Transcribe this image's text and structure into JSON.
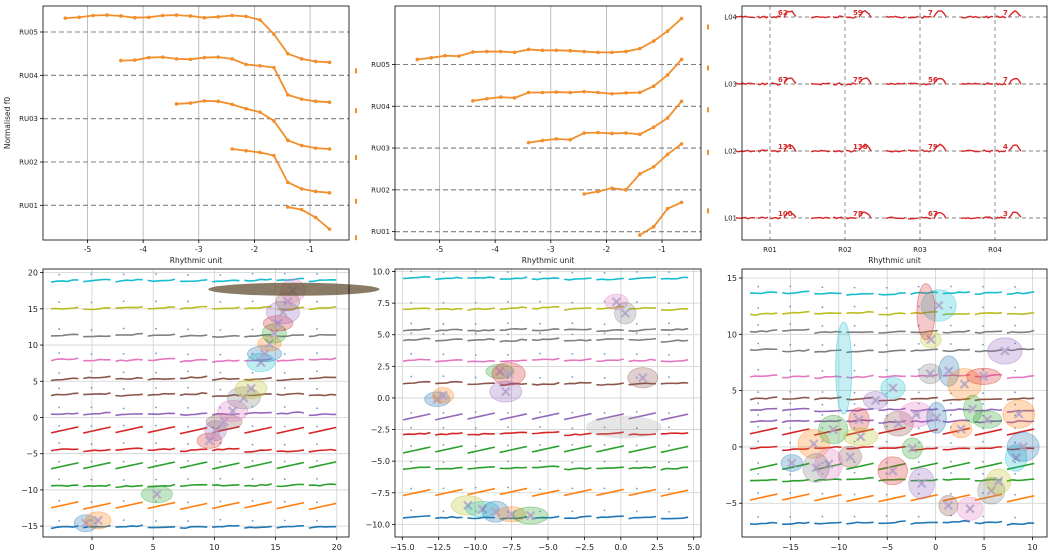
{
  "chart_data": [
    {
      "type": "line",
      "panel": "top-left",
      "xlabel": "Rhythmic unit",
      "ylabel": "Normalised f0",
      "xlim": [
        -5.8,
        -0.3
      ],
      "xticks": [
        "-5",
        "-4",
        "-3",
        "-2",
        "-1"
      ],
      "xtick_values": [
        -5,
        -4,
        -3,
        -2,
        -1
      ],
      "ylim": [
        0.2,
        5.6
      ],
      "yticks": [
        "RU01",
        "RU02",
        "RU03",
        "RU04",
        "RU05"
      ],
      "ytick_values": [
        1,
        2,
        3,
        4,
        5
      ],
      "grid": "vertical",
      "color": "#f28e2b",
      "series": [
        {
          "x": [
            -5.4,
            -5.15,
            -4.9,
            -4.65,
            -4.4,
            -4.15,
            -3.9,
            -3.65,
            -3.4,
            -3.15,
            -2.9,
            -2.65,
            -2.4,
            -2.15,
            -1.9,
            -1.65,
            -1.4,
            -1.15,
            -0.9,
            -0.65
          ],
          "y": [
            5.32,
            5.34,
            5.38,
            5.39,
            5.37,
            5.33,
            5.34,
            5.38,
            5.39,
            5.37,
            5.33,
            5.35,
            5.38,
            5.36,
            5.28,
            4.95,
            4.5,
            4.38,
            4.32,
            4.3
          ]
        },
        {
          "x": [
            -4.4,
            -4.15,
            -3.9,
            -3.65,
            -3.4,
            -3.15,
            -2.9,
            -2.65,
            -2.4,
            -2.15,
            -1.9,
            -1.65,
            -1.4,
            -1.15,
            -0.9,
            -0.65
          ],
          "y": [
            4.34,
            4.35,
            4.41,
            4.42,
            4.38,
            4.37,
            4.41,
            4.42,
            4.38,
            4.25,
            4.22,
            4.18,
            3.55,
            3.45,
            3.4,
            3.38
          ]
        },
        {
          "x": [
            -3.4,
            -3.15,
            -2.9,
            -2.65,
            -2.4,
            -2.15,
            -1.9,
            -1.65,
            -1.4,
            -1.15,
            -0.9,
            -0.65
          ],
          "y": [
            3.34,
            3.36,
            3.41,
            3.4,
            3.33,
            3.23,
            3.15,
            2.95,
            2.5,
            2.38,
            2.32,
            2.3
          ]
        },
        {
          "x": [
            -2.4,
            -2.15,
            -1.9,
            -1.65,
            -1.4,
            -1.15,
            -0.9,
            -0.65
          ],
          "y": [
            2.3,
            2.26,
            2.22,
            2.15,
            1.53,
            1.38,
            1.32,
            1.29
          ]
        },
        {
          "x": [
            -1.4,
            -1.15,
            -0.9,
            -0.65
          ],
          "y": [
            0.96,
            0.9,
            0.72,
            0.45
          ]
        }
      ]
    },
    {
      "type": "line",
      "panel": "top-middle",
      "xlabel": "Rhythmic unit",
      "xlim": [
        -5.8,
        -0.3
      ],
      "xticks": [
        "-5",
        "-4",
        "-3",
        "-2",
        "-1"
      ],
      "xtick_values": [
        -5,
        -4,
        -3,
        -2,
        -1
      ],
      "ylim": [
        0.8,
        6.4
      ],
      "yticks": [
        "RU01",
        "RU02",
        "RU03",
        "RU04",
        "RU05"
      ],
      "ytick_values": [
        1,
        2,
        3,
        4,
        5
      ],
      "grid": "vertical",
      "color": "#f28e2b",
      "series": [
        {
          "x": [
            -5.4,
            -5.15,
            -4.9,
            -4.65,
            -4.4,
            -4.15,
            -3.9,
            -3.65,
            -3.4,
            -3.15,
            -2.9,
            -2.65,
            -2.4,
            -2.15,
            -1.9,
            -1.65,
            -1.4,
            -1.15,
            -0.9,
            -0.65
          ],
          "y": [
            5.12,
            5.16,
            5.21,
            5.2,
            5.3,
            5.31,
            5.31,
            5.29,
            5.36,
            5.34,
            5.34,
            5.33,
            5.31,
            5.29,
            5.29,
            5.31,
            5.38,
            5.56,
            5.8,
            6.1
          ]
        },
        {
          "x": [
            -4.4,
            -4.15,
            -3.9,
            -3.65,
            -3.4,
            -3.15,
            -2.9,
            -2.65,
            -2.4,
            -2.15,
            -1.9,
            -1.65,
            -1.4,
            -1.15,
            -0.9,
            -0.65
          ],
          "y": [
            4.13,
            4.18,
            4.22,
            4.2,
            4.33,
            4.33,
            4.34,
            4.33,
            4.35,
            4.33,
            4.3,
            4.32,
            4.33,
            4.48,
            4.75,
            5.12
          ]
        },
        {
          "x": [
            -3.4,
            -3.15,
            -2.9,
            -2.65,
            -2.4,
            -2.15,
            -1.9,
            -1.65,
            -1.4,
            -1.15,
            -0.9,
            -0.65
          ],
          "y": [
            3.13,
            3.18,
            3.22,
            3.2,
            3.36,
            3.37,
            3.35,
            3.36,
            3.33,
            3.5,
            3.72,
            4.12
          ]
        },
        {
          "x": [
            -2.4,
            -2.15,
            -1.9,
            -1.65,
            -1.4,
            -1.15,
            -0.9,
            -0.65
          ],
          "y": [
            1.9,
            1.96,
            2.04,
            2.0,
            2.38,
            2.55,
            2.85,
            3.1
          ]
        },
        {
          "x": [
            -1.4,
            -1.15,
            -0.9,
            -0.65
          ],
          "y": [
            0.92,
            1.12,
            1.55,
            1.7
          ]
        }
      ]
    },
    {
      "type": "line",
      "panel": "top-right",
      "xlabel": "Rhythmic unit",
      "xticks": [
        "R01",
        "R02",
        "R03",
        "R04"
      ],
      "yticks": [
        "L01",
        "L02",
        "L03",
        "L04"
      ],
      "grid": "dashed",
      "color": "#d62728",
      "annotations": [
        {
          "row": "L04",
          "col": "R01",
          "text": "62"
        },
        {
          "row": "L04",
          "col": "R02",
          "text": "59"
        },
        {
          "row": "L04",
          "col": "R03",
          "text": "7"
        },
        {
          "row": "L04",
          "col": "R04",
          "text": "7"
        },
        {
          "row": "L03",
          "col": "R01",
          "text": "67"
        },
        {
          "row": "L03",
          "col": "R02",
          "text": "75"
        },
        {
          "row": "L03",
          "col": "R03",
          "text": "56"
        },
        {
          "row": "L03",
          "col": "R04",
          "text": "7"
        },
        {
          "row": "L02",
          "col": "R01",
          "text": "131"
        },
        {
          "row": "L02",
          "col": "R02",
          "text": "138"
        },
        {
          "row": "L02",
          "col": "R03",
          "text": "79"
        },
        {
          "row": "L02",
          "col": "R04",
          "text": "4"
        },
        {
          "row": "L01",
          "col": "R01",
          "text": "100"
        },
        {
          "row": "L01",
          "col": "R02",
          "text": "78"
        },
        {
          "row": "L01",
          "col": "R03",
          "text": "67"
        },
        {
          "row": "L01",
          "col": "R04",
          "text": "3"
        }
      ]
    },
    {
      "type": "scatter",
      "panel": "bottom-left",
      "xlim": [
        -4,
        21
      ],
      "ylim": [
        -16.5,
        20.5
      ],
      "xticks": [
        "0",
        "5",
        "10",
        "15",
        "20"
      ],
      "xtick_values": [
        0,
        5,
        10,
        15,
        20
      ],
      "yticks": [
        "−15",
        "−10",
        "−5",
        "0",
        "5",
        "10",
        "15",
        "20"
      ],
      "ytick_values": [
        -15,
        -10,
        -5,
        0,
        5,
        10,
        15,
        20
      ],
      "grid": "both",
      "bands": [
        -15.2,
        -12.6,
        -9.5,
        -7.0,
        -4.6,
        -2.2,
        0.4,
        3.0,
        5.3,
        7.8,
        11.2,
        15.0,
        18.8
      ],
      "band_colors": [
        "#1f77b4",
        "#ff7f0e",
        "#2ca02c",
        "#2ca02c",
        "#d62728",
        "#d62728",
        "#9467bd",
        "#8c564b",
        "#8c564b",
        "#e377c2",
        "#7f7f7f",
        "#bcbd22",
        "#17becf"
      ],
      "clusters": [
        [
          -0.5,
          -14.6
        ],
        [
          0.5,
          -14.2
        ],
        [
          5.3,
          -10.6
        ],
        [
          9.6,
          -3.2
        ],
        [
          10.1,
          -1.8
        ],
        [
          10.8,
          -0.6
        ],
        [
          11.5,
          0.9
        ],
        [
          12.4,
          2.7
        ],
        [
          13.0,
          4.0
        ],
        [
          13.8,
          7.6
        ],
        [
          14.1,
          8.8
        ],
        [
          14.5,
          10.2
        ],
        [
          14.9,
          11.6
        ],
        [
          15.2,
          13.0
        ],
        [
          15.6,
          14.5
        ],
        [
          16.0,
          16.0
        ],
        [
          16.4,
          17.5
        ]
      ],
      "large_ellipse": [
        16.5,
        17.7,
        7.0,
        0.9
      ]
    },
    {
      "type": "scatter",
      "panel": "bottom-middle",
      "xlim": [
        -15.5,
        5.5
      ],
      "ylim": [
        -11.0,
        10.2
      ],
      "xticks": [
        "−15.0",
        "−12.5",
        "−10.0",
        "−7.5",
        "−5.0",
        "−2.5",
        "0.0",
        "2.5",
        "5.0"
      ],
      "xtick_values": [
        -15,
        -12.5,
        -10,
        -7.5,
        -5,
        -2.5,
        0,
        2.5,
        5
      ],
      "yticks": [
        "−10.0",
        "−7.5",
        "−5.0",
        "−2.5",
        "0.0",
        "2.5",
        "5.0",
        "7.5",
        "10.0"
      ],
      "ytick_values": [
        -10,
        -7.5,
        -5,
        -2.5,
        0,
        2.5,
        5,
        7.5,
        10
      ],
      "grid": "both",
      "bands": [
        -9.5,
        -7.7,
        -5.6,
        -4.3,
        -2.9,
        -1.7,
        1.1,
        2.9,
        4.5,
        5.3,
        7.0,
        9.4
      ],
      "band_colors": [
        "#1f77b4",
        "#ff7f0e",
        "#2ca02c",
        "#2ca02c",
        "#d62728",
        "#9467bd",
        "#8c564b",
        "#e377c2",
        "#7f7f7f",
        "#7f7f7f",
        "#bcbd22",
        "#17becf"
      ],
      "clusters": [
        [
          -12.6,
          -0.1
        ],
        [
          -12.2,
          0.2
        ],
        [
          -8.3,
          2.1
        ],
        [
          -7.7,
          1.9
        ],
        [
          -7.9,
          0.5
        ],
        [
          1.5,
          1.6
        ],
        [
          -0.3,
          7.6
        ],
        [
          0.3,
          6.7
        ],
        [
          -10.5,
          -8.5
        ],
        [
          -9.5,
          -8.8
        ],
        [
          -8.6,
          -9.0
        ],
        [
          -7.5,
          -9.2
        ],
        [
          -6.2,
          -9.3
        ]
      ],
      "large_ellipse": [
        0.2,
        -2.3,
        2.6,
        0.9
      ]
    },
    {
      "type": "scatter",
      "panel": "bottom-right",
      "xlim": [
        -20,
        11.5
      ],
      "ylim": [
        -8.0,
        15.8
      ],
      "xticks": [
        "−15",
        "−10",
        "−5",
        "0",
        "5",
        "10"
      ],
      "xtick_values": [
        -15,
        -10,
        -5,
        0,
        5,
        10
      ],
      "yticks": [
        "−5",
        "0",
        "5",
        "10",
        "15"
      ],
      "ytick_values": [
        -5,
        0,
        5,
        10,
        15
      ],
      "grid": "both",
      "bands": [
        -6.8,
        -4.8,
        -3.0,
        -2.0,
        -0.2,
        1.1,
        2.2,
        3.2,
        4.2,
        6.2,
        8.5,
        10.2,
        11.8,
        13.6
      ],
      "band_colors": [
        "#1f77b4",
        "#ff7f0e",
        "#2ca02c",
        "#2ca02c",
        "#d62728",
        "#d62728",
        "#9467bd",
        "#9467bd",
        "#8c564b",
        "#e377c2",
        "#7f7f7f",
        "#7f7f7f",
        "#bcbd22",
        "#17becf"
      ]
    }
  ]
}
